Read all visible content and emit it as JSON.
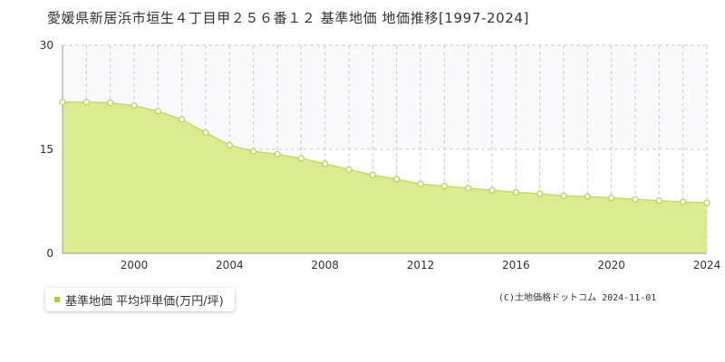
{
  "title": "愛媛県新居浜市垣生４丁目甲２５６番１２ 基準地価 地価推移[1997-2024]",
  "copyright": "(C)土地価格ドットコム 2024-11-01",
  "colors": {
    "area_fill": "#d9ec91",
    "line": "#c4dc66",
    "point_fill": "#ffffff",
    "point_stroke": "#b5d050",
    "legend_marker": "#a8d12e",
    "upper_band": "#f9f8fa",
    "grid": "#cccccc"
  },
  "chart_data": {
    "type": "area",
    "title": "愛媛県新居浜市垣生４丁目甲２５６番１２ 基準地価 地価推移[1997-2024]",
    "legend_position": "bottom-left",
    "grid": true,
    "xlim": [
      1997,
      2024
    ],
    "ylim": [
      0,
      30
    ],
    "yticks": [
      0,
      15,
      30
    ],
    "xticks": [
      2000,
      2004,
      2008,
      2012,
      2016,
      2020,
      2024
    ],
    "x": [
      1997,
      1998,
      1999,
      2000,
      2001,
      2002,
      2003,
      2004,
      2005,
      2006,
      2007,
      2008,
      2009,
      2010,
      2011,
      2012,
      2013,
      2014,
      2015,
      2016,
      2017,
      2018,
      2019,
      2020,
      2021,
      2022,
      2023,
      2024
    ],
    "series": [
      {
        "name": "基準地価 平均坪単価(万円/坪)",
        "values": [
          21.8,
          21.8,
          21.7,
          21.3,
          20.5,
          19.3,
          17.4,
          15.6,
          14.7,
          14.3,
          13.7,
          12.9,
          12.1,
          11.3,
          10.7,
          10.0,
          9.7,
          9.4,
          9.1,
          8.8,
          8.6,
          8.3,
          8.2,
          8.0,
          7.8,
          7.6,
          7.4,
          7.3
        ]
      }
    ]
  }
}
